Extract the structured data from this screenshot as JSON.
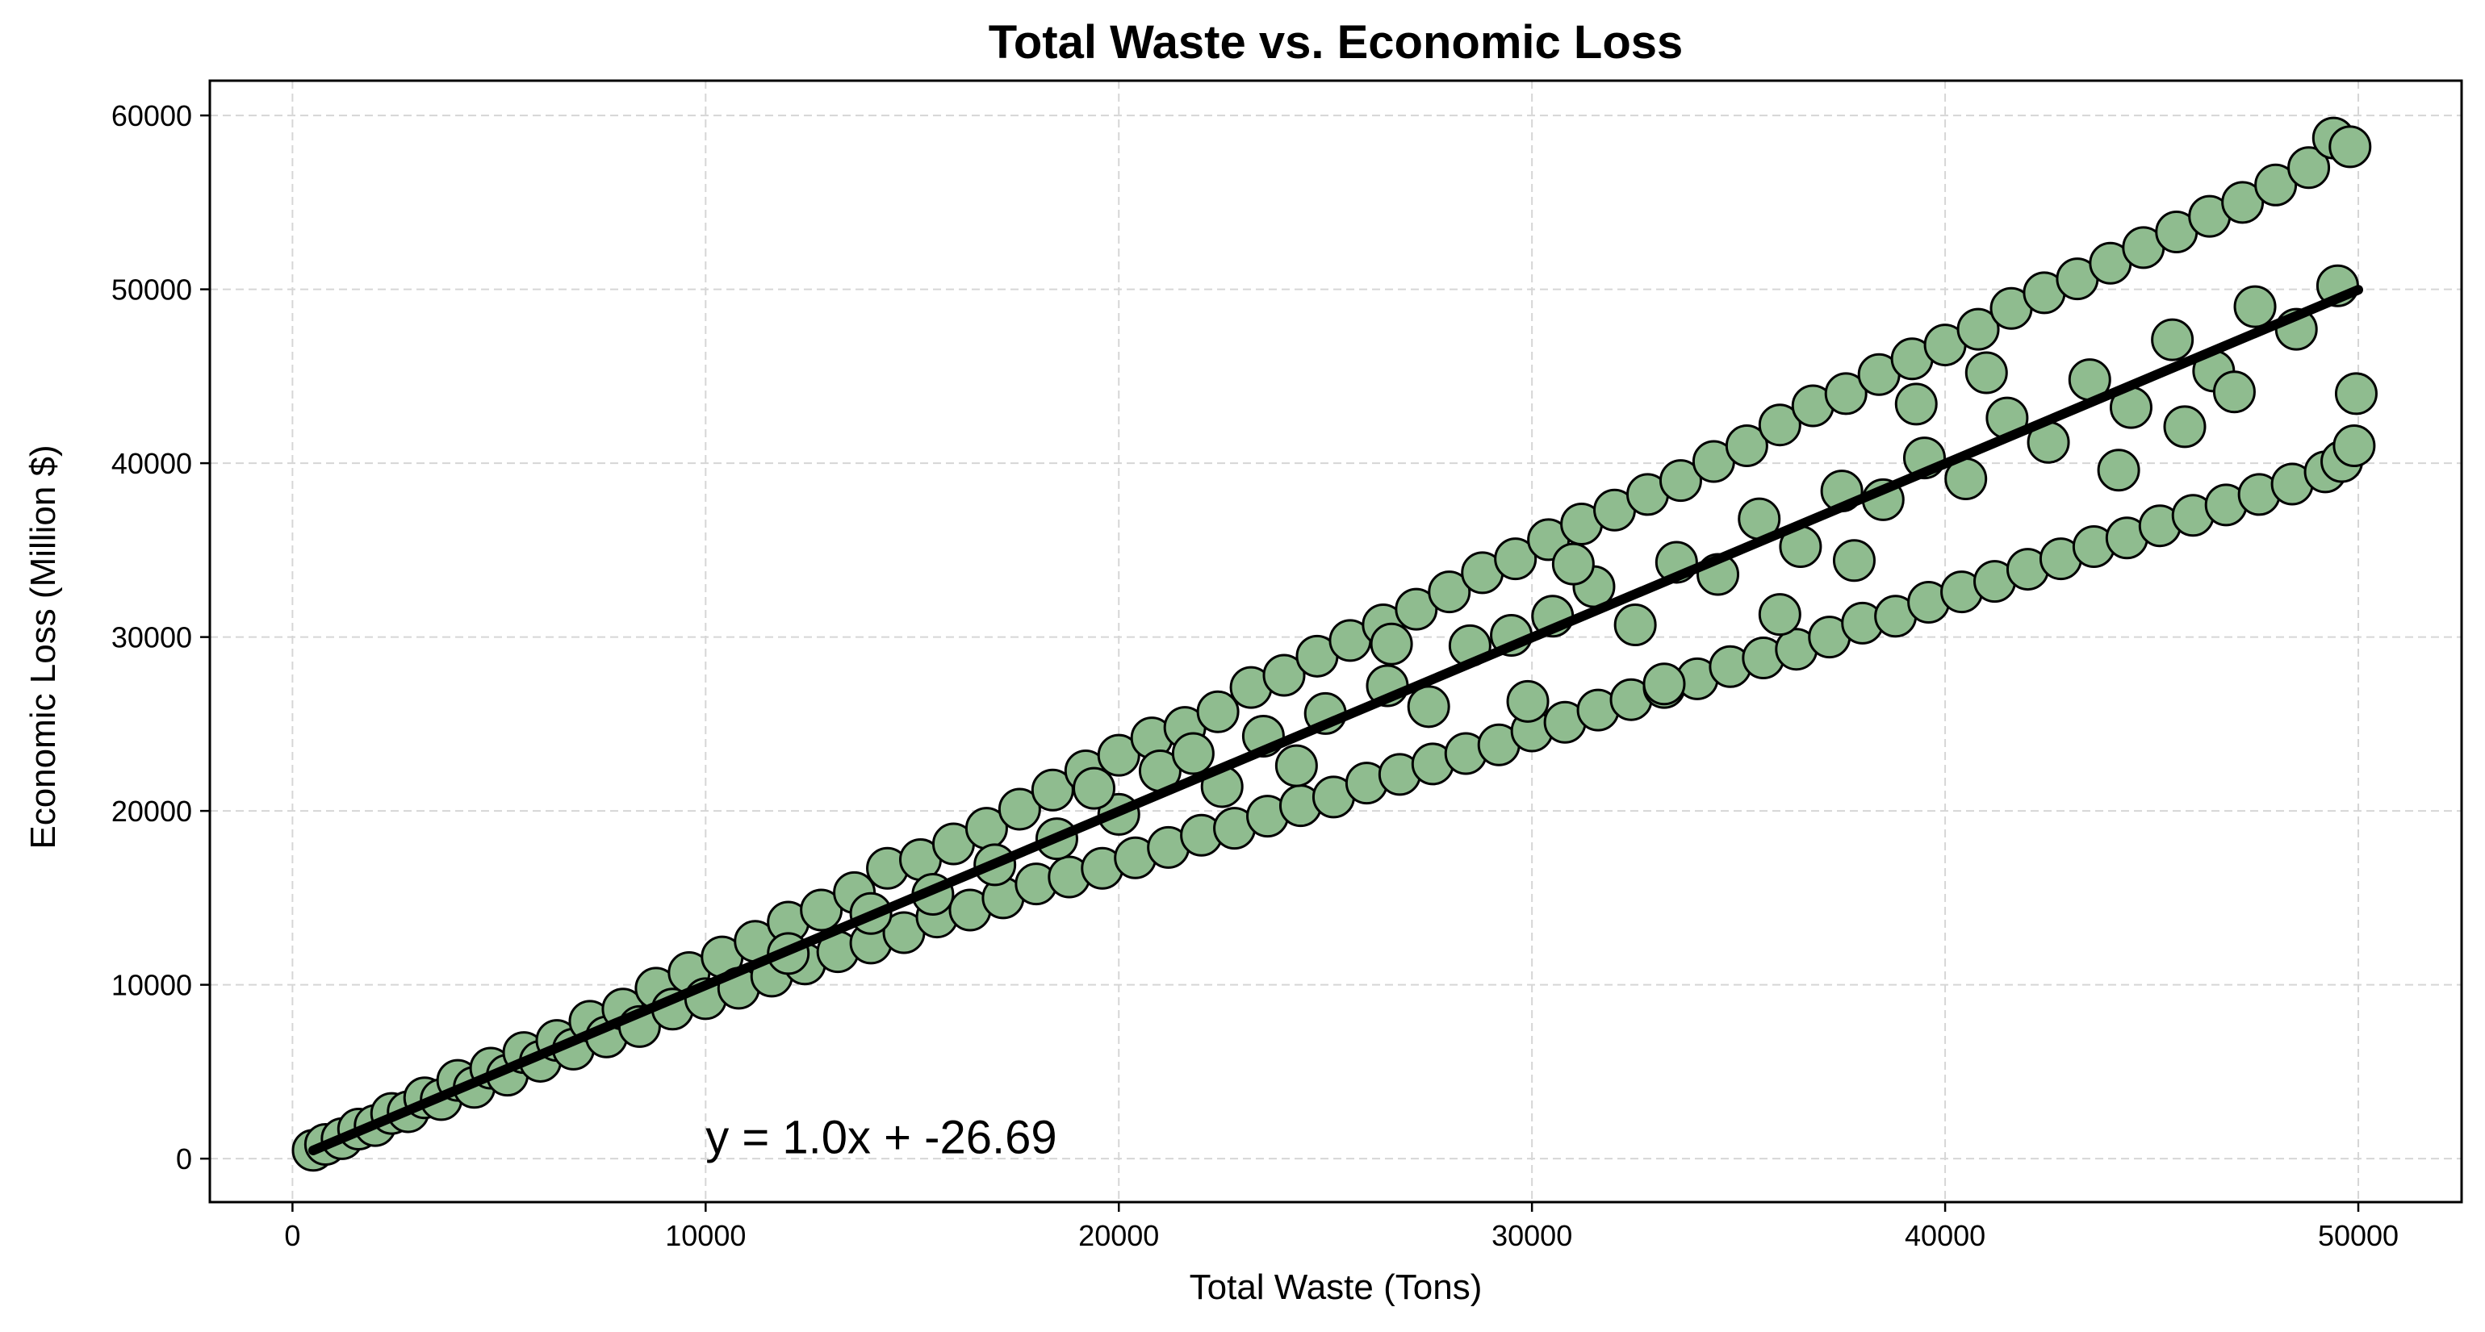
{
  "chart_data": {
    "type": "scatter",
    "title": "Total Waste vs. Economic Loss",
    "xlabel": "Total Waste (Tons)",
    "ylabel": "Economic Loss (Million $)",
    "xlim": [
      -2000,
      52500
    ],
    "ylim": [
      -2500,
      62000
    ],
    "xticks": [
      0,
      10000,
      20000,
      30000,
      40000,
      50000
    ],
    "xtick_labels": [
      "0",
      "10000",
      "20000",
      "30000",
      "40000",
      "50000"
    ],
    "yticks": [
      0,
      10000,
      20000,
      30000,
      40000,
      50000,
      60000
    ],
    "ytick_labels": [
      "0",
      "10000",
      "20000",
      "30000",
      "40000",
      "50000",
      "60000"
    ],
    "grid": true,
    "marker_color": "#8fbc8f",
    "marker_edge_color": "#000000",
    "line_color": "#000000",
    "regression": {
      "slope": 1.0,
      "intercept": -26.69,
      "x_range": [
        500,
        50000
      ],
      "label": "y = 1.0x + -26.69",
      "label_position": [
        10000,
        300
      ]
    },
    "points": [
      [
        500,
        480
      ],
      [
        800,
        820
      ],
      [
        1200,
        1150
      ],
      [
        1600,
        1700
      ],
      [
        2000,
        1900
      ],
      [
        2400,
        2600
      ],
      [
        2800,
        2700
      ],
      [
        3200,
        3500
      ],
      [
        3600,
        3400
      ],
      [
        4000,
        4500
      ],
      [
        4400,
        4100
      ],
      [
        4800,
        5200
      ],
      [
        5200,
        4800
      ],
      [
        5600,
        6100
      ],
      [
        6000,
        5600
      ],
      [
        6400,
        6800
      ],
      [
        6800,
        6300
      ],
      [
        7200,
        7900
      ],
      [
        7600,
        7000
      ],
      [
        8000,
        8600
      ],
      [
        8400,
        7600
      ],
      [
        8800,
        9800
      ],
      [
        9200,
        8600
      ],
      [
        9600,
        10700
      ],
      [
        10000,
        9200
      ],
      [
        10400,
        11600
      ],
      [
        10800,
        9800
      ],
      [
        11200,
        12500
      ],
      [
        11600,
        10500
      ],
      [
        12000,
        13600
      ],
      [
        12400,
        11200
      ],
      [
        12800,
        14300
      ],
      [
        13200,
        11900
      ],
      [
        13600,
        15300
      ],
      [
        14000,
        12400
      ],
      [
        14400,
        16700
      ],
      [
        14800,
        13000
      ],
      [
        15200,
        17200
      ],
      [
        15600,
        13900
      ],
      [
        16000,
        18100
      ],
      [
        16400,
        14300
      ],
      [
        16800,
        19000
      ],
      [
        17200,
        15000
      ],
      [
        17600,
        20100
      ],
      [
        18000,
        15800
      ],
      [
        18400,
        21200
      ],
      [
        18800,
        16200
      ],
      [
        19200,
        22300
      ],
      [
        19600,
        16700
      ],
      [
        20000,
        23200
      ],
      [
        20400,
        17300
      ],
      [
        20800,
        24200
      ],
      [
        21200,
        17900
      ],
      [
        21600,
        24800
      ],
      [
        22000,
        18600
      ],
      [
        22400,
        25700
      ],
      [
        22800,
        19000
      ],
      [
        23200,
        27100
      ],
      [
        23600,
        19700
      ],
      [
        24000,
        27800
      ],
      [
        24400,
        20300
      ],
      [
        24800,
        28900
      ],
      [
        25200,
        20800
      ],
      [
        25600,
        29800
      ],
      [
        26000,
        21600
      ],
      [
        26400,
        30700
      ],
      [
        26800,
        22100
      ],
      [
        27200,
        31600
      ],
      [
        27600,
        22700
      ],
      [
        28000,
        32600
      ],
      [
        28400,
        23300
      ],
      [
        28800,
        33700
      ],
      [
        29200,
        23800
      ],
      [
        29600,
        34500
      ],
      [
        30000,
        24600
      ],
      [
        30400,
        35600
      ],
      [
        30800,
        25100
      ],
      [
        31200,
        36500
      ],
      [
        31600,
        25800
      ],
      [
        32000,
        37300
      ],
      [
        32400,
        26400
      ],
      [
        32800,
        38200
      ],
      [
        33200,
        27100
      ],
      [
        33600,
        39000
      ],
      [
        34000,
        27600
      ],
      [
        34400,
        40100
      ],
      [
        34800,
        28300
      ],
      [
        35200,
        41000
      ],
      [
        35600,
        28800
      ],
      [
        36000,
        42200
      ],
      [
        36400,
        29300
      ],
      [
        36800,
        43300
      ],
      [
        37200,
        30000
      ],
      [
        37600,
        44000
      ],
      [
        38000,
        30800
      ],
      [
        38400,
        45100
      ],
      [
        38800,
        31200
      ],
      [
        39200,
        46000
      ],
      [
        39600,
        32000
      ],
      [
        40000,
        46800
      ],
      [
        40400,
        32600
      ],
      [
        40800,
        47700
      ],
      [
        41200,
        33200
      ],
      [
        41600,
        48900
      ],
      [
        42000,
        33900
      ],
      [
        42400,
        49800
      ],
      [
        42800,
        34500
      ],
      [
        43200,
        50600
      ],
      [
        43600,
        35200
      ],
      [
        44000,
        51500
      ],
      [
        44400,
        35700
      ],
      [
        44800,
        52400
      ],
      [
        45200,
        36400
      ],
      [
        45600,
        53300
      ],
      [
        46000,
        37000
      ],
      [
        46400,
        54200
      ],
      [
        46800,
        37600
      ],
      [
        47200,
        55000
      ],
      [
        47600,
        38200
      ],
      [
        48000,
        56000
      ],
      [
        48400,
        38800
      ],
      [
        48800,
        57000
      ],
      [
        49200,
        39500
      ],
      [
        49400,
        58700
      ],
      [
        49600,
        40100
      ],
      [
        49800,
        58200
      ],
      [
        49900,
        41000
      ],
      [
        49950,
        44000
      ],
      [
        12000,
        11800
      ],
      [
        14000,
        14100
      ],
      [
        15500,
        15200
      ],
      [
        17000,
        16900
      ],
      [
        18500,
        18400
      ],
      [
        20000,
        19800
      ],
      [
        21000,
        22300
      ],
      [
        22500,
        21400
      ],
      [
        23500,
        24300
      ],
      [
        25000,
        25600
      ],
      [
        26500,
        27200
      ],
      [
        27500,
        26000
      ],
      [
        28500,
        29500
      ],
      [
        29500,
        30100
      ],
      [
        30500,
        31200
      ],
      [
        31500,
        32900
      ],
      [
        32500,
        30700
      ],
      [
        33500,
        34300
      ],
      [
        34500,
        33600
      ],
      [
        35500,
        36800
      ],
      [
        36500,
        35200
      ],
      [
        37500,
        38400
      ],
      [
        38500,
        37900
      ],
      [
        39500,
        40300
      ],
      [
        40500,
        39100
      ],
      [
        41500,
        42600
      ],
      [
        42500,
        41200
      ],
      [
        43500,
        44800
      ],
      [
        44500,
        43200
      ],
      [
        45500,
        47100
      ],
      [
        46500,
        45300
      ],
      [
        47500,
        49000
      ],
      [
        48500,
        47700
      ],
      [
        49500,
        50200
      ],
      [
        33200,
        27300
      ],
      [
        36000,
        31300
      ],
      [
        44200,
        39600
      ],
      [
        41000,
        45200
      ],
      [
        26600,
        29600
      ],
      [
        21800,
        23300
      ],
      [
        37800,
        34400
      ],
      [
        45800,
        42100
      ],
      [
        29900,
        26300
      ],
      [
        24300,
        22600
      ],
      [
        47000,
        44100
      ],
      [
        39300,
        43400
      ],
      [
        31000,
        34200
      ],
      [
        19400,
        21300
      ]
    ]
  }
}
